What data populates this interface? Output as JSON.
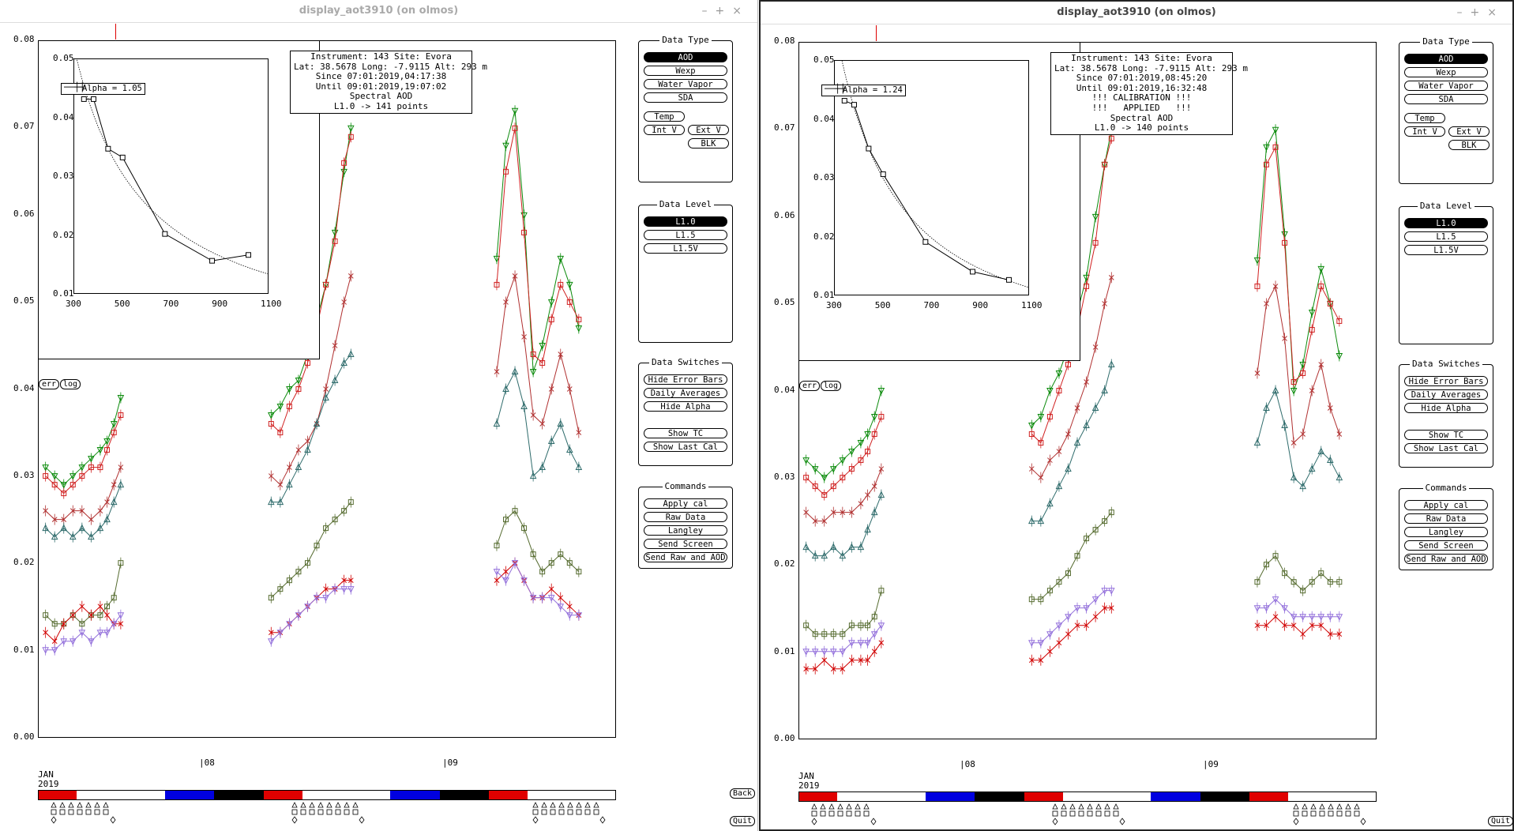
{
  "windows": [
    {
      "title": "display_aot3910 (on olmos)",
      "info_lines": [
        "Instrument: 143 Site: Evora",
        "Lat: 38.5678 Long: -7.9115 Alt: 293 m",
        "Since 07:01:2019,04:17:38",
        "Until 09:01:2019,19:07:02",
        "Spectral AOD",
        "L1.0 -> 141 points"
      ],
      "alpha_label": "Alpha = 1.05"
    },
    {
      "title": "display_aot3910 (on olmos)",
      "info_lines": [
        "Instrument: 143 Site: Evora",
        "Lat: 38.5678 Long: -7.9115 Alt: 293 m",
        "Since 07:01:2019,08:45:20",
        "Until 09:01:2019,16:32:48",
        "!!! CALIBRATION !!!",
        "!!!   APPLIED   !!!",
        "Spectral AOD",
        "L1.0 -> 140 points"
      ],
      "alpha_label": "Alpha = 1.24"
    }
  ],
  "titlebar_buttons": [
    "–",
    "+",
    "×"
  ],
  "main_yticks": [
    "0.08",
    "0.07",
    "0.06",
    "0.05",
    "0.04",
    "0.03",
    "0.02",
    "0.01",
    "0.00"
  ],
  "inset_yticks": [
    "0.05",
    "0.04",
    "0.03",
    "0.02",
    "0.01"
  ],
  "inset_xticks": [
    "300",
    "500",
    "700",
    "900",
    "1100"
  ],
  "err_label": "err",
  "log_label": "log",
  "date_ticks": [
    "08",
    "09"
  ],
  "date_origin": [
    "JAN",
    "2019"
  ],
  "panels": {
    "data_type": {
      "title": "Data Type",
      "buttons": [
        "AOD",
        "Wexp",
        "Water Vapor",
        "SDA"
      ],
      "extra": [
        "Temp",
        "Int V",
        "Ext V",
        "BLK"
      ]
    },
    "data_level": {
      "title": "Data Level",
      "buttons": [
        "L1.0",
        "L1.5",
        "L1.5V"
      ]
    },
    "data_switches": {
      "title": "Data Switches",
      "buttons": [
        "Hide Error Bars",
        "Daily Averages",
        "Hide Alpha",
        "Show TC",
        "Show Last Cal"
      ]
    },
    "commands": {
      "title": "Commands",
      "buttons": [
        "Apply cal",
        "Raw Data",
        "Langley",
        "Send Screen",
        "Send Raw and AOD"
      ]
    }
  },
  "back_label": "Back",
  "quit_label": "Quit",
  "day_bar_colors": [
    "#e00000",
    "#ffffff",
    "#ffffff",
    "#0000e0",
    "#000000",
    "#e00000",
    "#ffffff",
    "#ffffff",
    "#0000e0",
    "#000000",
    "#e00000",
    "#ffffff",
    "#ffffff"
  ],
  "series_colors": {
    "s1020": "#7b3f9e",
    "s870": "#d00000",
    "s675": "#556b2f",
    "s500": "#2e6b6b",
    "s440": "#b03030",
    "s380": "#d02020",
    "s340": "#0a8a0a",
    "purple": "#9370db"
  },
  "chart_data": [
    {
      "type": "scatter",
      "title": "Spectral AOD",
      "x_type": "date",
      "ylim": [
        0,
        0.08
      ],
      "series": [
        {
          "days": [
            {
              "x": [
                7.03,
                7.07,
                7.11,
                7.15,
                7.19,
                7.23,
                7.27,
                7.3,
                7.33,
                7.36
              ],
              "v": {
                "s340": [
                  0.031,
                  0.03,
                  0.029,
                  0.03,
                  0.031,
                  0.032,
                  0.033,
                  0.034,
                  0.036,
                  0.039
                ],
                "s380": [
                  0.03,
                  0.029,
                  0.028,
                  0.029,
                  0.03,
                  0.031,
                  0.031,
                  0.033,
                  0.035,
                  0.037
                ],
                "s440": [
                  0.026,
                  0.025,
                  0.025,
                  0.026,
                  0.026,
                  0.025,
                  0.026,
                  0.027,
                  0.029,
                  0.031
                ],
                "s500": [
                  0.024,
                  0.023,
                  0.024,
                  0.023,
                  0.024,
                  0.023,
                  0.024,
                  0.025,
                  0.027,
                  0.029
                ],
                "s675": [
                  0.014,
                  0.013,
                  0.013,
                  0.014,
                  0.013,
                  0.014,
                  0.014,
                  0.015,
                  0.016,
                  0.02
                ],
                "s870": [
                  0.012,
                  0.011,
                  0.013,
                  0.014,
                  0.015,
                  0.014,
                  0.015,
                  0.014,
                  0.013,
                  0.013
                ],
                "purple": [
                  0.01,
                  0.01,
                  0.011,
                  0.011,
                  0.012,
                  0.011,
                  0.012,
                  0.012,
                  0.013,
                  0.014
                ]
              }
            },
            {
              "x": [
                8.02,
                8.06,
                8.1,
                8.14,
                8.18,
                8.22,
                8.26,
                8.3,
                8.34,
                8.37
              ],
              "v": {
                "s340": [
                  0.037,
                  0.038,
                  0.04,
                  0.041,
                  0.044,
                  0.048,
                  0.052,
                  0.058,
                  0.065,
                  0.07
                ],
                "s380": [
                  0.036,
                  0.035,
                  0.038,
                  0.04,
                  0.043,
                  0.047,
                  0.052,
                  0.057,
                  0.066,
                  0.069
                ],
                "s440": [
                  0.03,
                  0.029,
                  0.031,
                  0.033,
                  0.034,
                  0.036,
                  0.04,
                  0.045,
                  0.05,
                  0.053
                ],
                "s500": [
                  0.027,
                  0.027,
                  0.029,
                  0.031,
                  0.033,
                  0.036,
                  0.039,
                  0.041,
                  0.043,
                  0.044
                ],
                "s675": [
                  0.016,
                  0.017,
                  0.018,
                  0.019,
                  0.02,
                  0.022,
                  0.024,
                  0.025,
                  0.026,
                  0.027
                ],
                "s870": [
                  0.012,
                  0.012,
                  0.013,
                  0.014,
                  0.015,
                  0.016,
                  0.017,
                  0.017,
                  0.018,
                  0.018
                ],
                "purple": [
                  0.011,
                  0.012,
                  0.013,
                  0.014,
                  0.015,
                  0.016,
                  0.016,
                  0.017,
                  0.017,
                  0.017
                ]
              }
            },
            {
              "x": [
                9.01,
                9.05,
                9.09,
                9.13,
                9.17,
                9.21,
                9.25,
                9.29,
                9.33,
                9.37
              ],
              "v": {
                "s340": [
                  0.055,
                  0.068,
                  0.072,
                  0.06,
                  0.042,
                  0.045,
                  0.05,
                  0.055,
                  0.052,
                  0.047
                ],
                "s380": [
                  0.052,
                  0.065,
                  0.07,
                  0.058,
                  0.044,
                  0.043,
                  0.048,
                  0.052,
                  0.05,
                  0.048
                ],
                "s440": [
                  0.042,
                  0.05,
                  0.053,
                  0.046,
                  0.037,
                  0.036,
                  0.04,
                  0.044,
                  0.04,
                  0.035
                ],
                "s500": [
                  0.036,
                  0.04,
                  0.042,
                  0.038,
                  0.03,
                  0.031,
                  0.034,
                  0.036,
                  0.033,
                  0.031
                ],
                "s675": [
                  0.022,
                  0.025,
                  0.026,
                  0.024,
                  0.021,
                  0.019,
                  0.02,
                  0.021,
                  0.02,
                  0.019
                ],
                "s870": [
                  0.018,
                  0.019,
                  0.02,
                  0.018,
                  0.016,
                  0.016,
                  0.017,
                  0.016,
                  0.015,
                  0.014
                ],
                "purple": [
                  0.019,
                  0.018,
                  0.02,
                  0.018,
                  0.016,
                  0.016,
                  0.016,
                  0.015,
                  0.014,
                  0.014
                ]
              }
            }
          ]
        }
      ]
    },
    {
      "type": "line",
      "title": "Alpha = 1.05",
      "x": [
        340,
        380,
        440,
        500,
        675,
        870,
        1020
      ],
      "y": [
        0.0432,
        0.0432,
        0.0347,
        0.0332,
        0.0201,
        0.0155,
        0.0165
      ],
      "fit_alpha": 1.05,
      "xlim": [
        300,
        1100
      ],
      "ylim": [
        0.01,
        0.05
      ]
    },
    {
      "type": "scatter",
      "title": "Spectral AOD",
      "x_type": "date",
      "ylim": [
        0,
        0.08
      ],
      "series": [
        {
          "days": [
            {
              "x": [
                7.03,
                7.07,
                7.11,
                7.15,
                7.19,
                7.23,
                7.27,
                7.3,
                7.33,
                7.36
              ],
              "v": {
                "s340": [
                  0.032,
                  0.031,
                  0.03,
                  0.031,
                  0.032,
                  0.033,
                  0.034,
                  0.035,
                  0.037,
                  0.04
                ],
                "s380": [
                  0.03,
                  0.029,
                  0.028,
                  0.029,
                  0.03,
                  0.031,
                  0.032,
                  0.033,
                  0.035,
                  0.037
                ],
                "s440": [
                  0.026,
                  0.025,
                  0.025,
                  0.026,
                  0.026,
                  0.026,
                  0.027,
                  0.028,
                  0.029,
                  0.031
                ],
                "s500": [
                  0.022,
                  0.021,
                  0.021,
                  0.022,
                  0.021,
                  0.022,
                  0.022,
                  0.024,
                  0.026,
                  0.028
                ],
                "s675": [
                  0.013,
                  0.012,
                  0.012,
                  0.012,
                  0.012,
                  0.013,
                  0.013,
                  0.013,
                  0.014,
                  0.017
                ],
                "s870": [
                  0.008,
                  0.008,
                  0.009,
                  0.008,
                  0.008,
                  0.009,
                  0.009,
                  0.009,
                  0.01,
                  0.011
                ],
                "purple": [
                  0.01,
                  0.01,
                  0.01,
                  0.01,
                  0.01,
                  0.011,
                  0.011,
                  0.011,
                  0.012,
                  0.013
                ]
              }
            },
            {
              "x": [
                8.02,
                8.06,
                8.1,
                8.14,
                8.18,
                8.22,
                8.26,
                8.3,
                8.34,
                8.37
              ],
              "v": {
                "s340": [
                  0.036,
                  0.037,
                  0.04,
                  0.042,
                  0.045,
                  0.049,
                  0.053,
                  0.06,
                  0.066,
                  0.07
                ],
                "s380": [
                  0.035,
                  0.034,
                  0.037,
                  0.04,
                  0.043,
                  0.047,
                  0.052,
                  0.057,
                  0.066,
                  0.069
                ],
                "s440": [
                  0.031,
                  0.03,
                  0.032,
                  0.033,
                  0.035,
                  0.038,
                  0.041,
                  0.045,
                  0.05,
                  0.053
                ],
                "s500": [
                  0.025,
                  0.025,
                  0.027,
                  0.029,
                  0.031,
                  0.034,
                  0.036,
                  0.038,
                  0.04,
                  0.043
                ],
                "s675": [
                  0.016,
                  0.016,
                  0.017,
                  0.018,
                  0.019,
                  0.021,
                  0.023,
                  0.024,
                  0.025,
                  0.026
                ],
                "s870": [
                  0.009,
                  0.009,
                  0.01,
                  0.011,
                  0.012,
                  0.013,
                  0.013,
                  0.014,
                  0.015,
                  0.015
                ],
                "purple": [
                  0.011,
                  0.011,
                  0.012,
                  0.013,
                  0.014,
                  0.015,
                  0.015,
                  0.016,
                  0.017,
                  0.017
                ]
              }
            },
            {
              "x": [
                9.01,
                9.05,
                9.09,
                9.13,
                9.17,
                9.21,
                9.25,
                9.29,
                9.33,
                9.37
              ],
              "v": {
                "s340": [
                  0.055,
                  0.068,
                  0.07,
                  0.058,
                  0.04,
                  0.043,
                  0.049,
                  0.054,
                  0.05,
                  0.044
                ],
                "s380": [
                  0.052,
                  0.066,
                  0.068,
                  0.057,
                  0.041,
                  0.042,
                  0.047,
                  0.052,
                  0.05,
                  0.048
                ],
                "s440": [
                  0.042,
                  0.05,
                  0.052,
                  0.046,
                  0.034,
                  0.035,
                  0.04,
                  0.043,
                  0.038,
                  0.035
                ],
                "s500": [
                  0.034,
                  0.038,
                  0.04,
                  0.036,
                  0.03,
                  0.029,
                  0.031,
                  0.033,
                  0.032,
                  0.03
                ],
                "s675": [
                  0.018,
                  0.02,
                  0.021,
                  0.019,
                  0.018,
                  0.017,
                  0.018,
                  0.019,
                  0.018,
                  0.018
                ],
                "s870": [
                  0.013,
                  0.013,
                  0.014,
                  0.013,
                  0.013,
                  0.012,
                  0.013,
                  0.013,
                  0.012,
                  0.012
                ],
                "purple": [
                  0.015,
                  0.015,
                  0.016,
                  0.015,
                  0.014,
                  0.014,
                  0.014,
                  0.014,
                  0.014,
                  0.014
                ]
              }
            }
          ]
        }
      ]
    },
    {
      "type": "line",
      "title": "Alpha = 1.24",
      "x": [
        340,
        380,
        440,
        500,
        675,
        870,
        1020
      ],
      "y": [
        0.0432,
        0.0425,
        0.035,
        0.0306,
        0.019,
        0.0139,
        0.0125
      ],
      "fit_alpha": 1.24,
      "xlim": [
        300,
        1100
      ],
      "ylim": [
        0.01,
        0.05
      ]
    }
  ]
}
